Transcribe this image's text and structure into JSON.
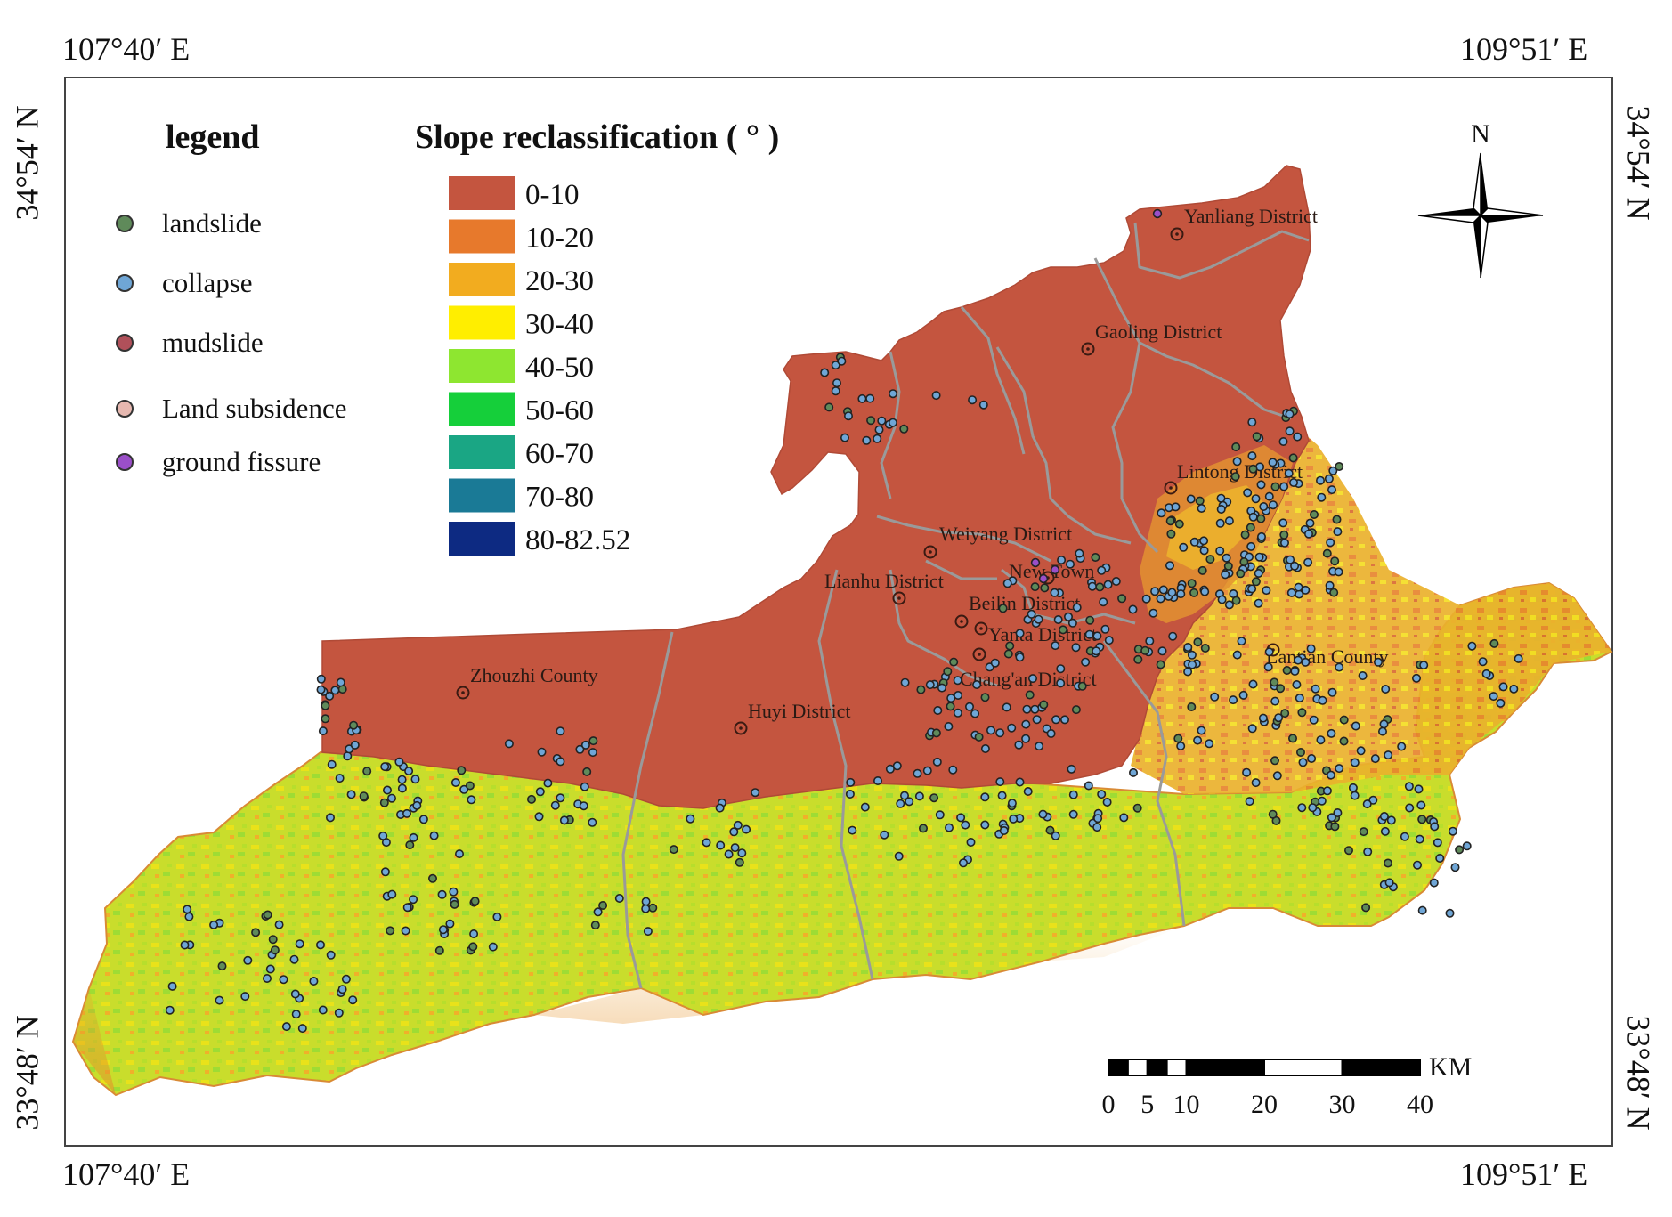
{
  "coords": {
    "top_left": "107°40′ E",
    "top_right": "109°51′ E",
    "bottom_left": "107°40′ E",
    "bottom_right": "109°51′ E",
    "left_top": "34°54′ N",
    "left_bottom": "33°48′ N",
    "right_top": "34°54′ N",
    "right_bottom": "33°48′ N"
  },
  "legend": {
    "title": "legend",
    "items": [
      {
        "label": "landslide",
        "color": "#5f8a5a"
      },
      {
        "label": "collapse",
        "color": "#6fa6d6"
      },
      {
        "label": "mudslide",
        "color": "#b0505a"
      },
      {
        "label": "Land subsidence",
        "color": "#e6b8b0"
      },
      {
        "label": "ground fissure",
        "color": "#9a4fc8"
      }
    ]
  },
  "slope": {
    "title": "Slope reclassification ( ° )",
    "classes": [
      {
        "label": "0-10",
        "color": "#c4553f"
      },
      {
        "label": "10-20",
        "color": "#e7792c"
      },
      {
        "label": "20-30",
        "color": "#f2ac1f"
      },
      {
        "label": "30-40",
        "color": "#ffee00"
      },
      {
        "label": "40-50",
        "color": "#8ee630"
      },
      {
        "label": "50-60",
        "color": "#15cf3a"
      },
      {
        "label": "60-70",
        "color": "#1aa684"
      },
      {
        "label": "70-80",
        "color": "#1a7a96"
      },
      {
        "label": "80-82.52",
        "color": "#0d2a82"
      }
    ]
  },
  "north": {
    "label": "N"
  },
  "districts": [
    "Yanliang District",
    "Gaoling District",
    "Lintong District",
    "Weiyang District",
    "New Town",
    "Lianhu District",
    "Beilin District",
    "Yanta District",
    "Chang'an District",
    "Lantian County",
    "Zhouzhi County",
    "Huyi District"
  ],
  "scale_bar": {
    "unit": "KM",
    "ticks": [
      "0",
      "5",
      "10",
      "20",
      "30",
      "40"
    ]
  }
}
